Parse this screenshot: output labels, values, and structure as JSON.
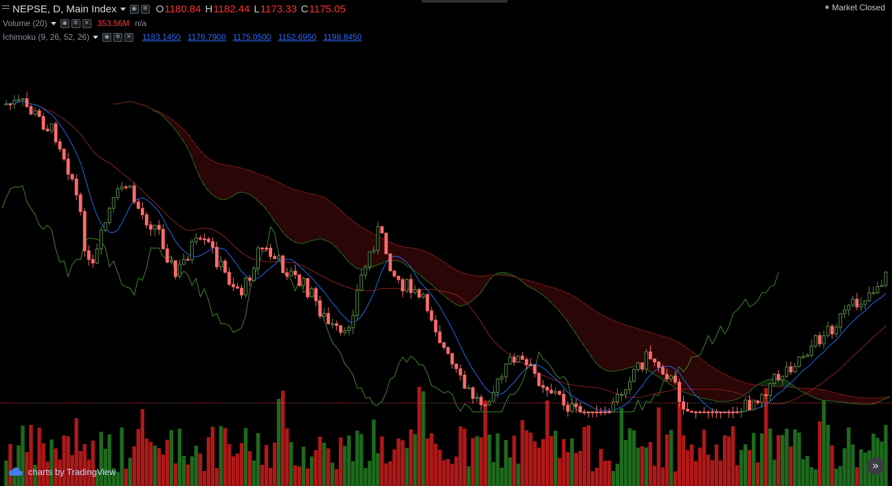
{
  "legend": {
    "symbol": "NEPSE, D, Main Index",
    "ohlc": [
      {
        "label": "O",
        "value": "1180.84"
      },
      {
        "label": "H",
        "value": "1182.44"
      },
      {
        "label": "L",
        "value": "1173.33"
      },
      {
        "label": "C",
        "value": "1175.05"
      }
    ]
  },
  "volume": {
    "label": "Volume (20)",
    "value": "353.56M",
    "extra": "n/a"
  },
  "ichimoku": {
    "label": "Ichimoku (9, 26, 52, 26)",
    "values": [
      "1183.1450",
      "1176.7900",
      "1175.0500",
      "1152.6950",
      "1198.8450"
    ]
  },
  "status": "Market Closed",
  "branding": "charts by TradingView",
  "colors": {
    "up": "#5c8f4c",
    "down": "#ff6b6b",
    "up_volume": "#1e6a1e",
    "down_volume": "#b01818",
    "conversion_line": "#1e6ff0",
    "base_line": "#8b2323",
    "lagging_span": "#3f8a2a",
    "cloud_bull": "#0a2a0a",
    "cloud_bear": "#2b0606",
    "last_price_line": "#ff5a5a",
    "background": "#000000"
  },
  "icons": [
    "collapse-icon",
    "eye-icon",
    "gear-icon",
    "close-icon",
    "tradingview-cloud-icon",
    "double-chevron-right-icon"
  ],
  "chart_data": {
    "type": "candlestick",
    "price_range": [
      1173,
      1190
    ],
    "price_points": [
      1186,
      1186,
      1185,
      1184,
      1181,
      1175,
      1179,
      1181,
      1179,
      1178,
      1175,
      1177,
      1177,
      1175,
      1174,
      1177,
      1176,
      1175,
      1174,
      1172,
      1171,
      1175,
      1178,
      1175,
      1174,
      1173,
      1170,
      1168,
      1167,
      1168,
      1170,
      1169,
      1168,
      1167,
      1166,
      1165,
      1167,
      1169,
      1170,
      1169,
      1167,
      1165,
      1164,
      1166,
      1167,
      1168,
      1169,
      1170,
      1171,
      1172,
      1173,
      1174,
      1175
    ]
  }
}
